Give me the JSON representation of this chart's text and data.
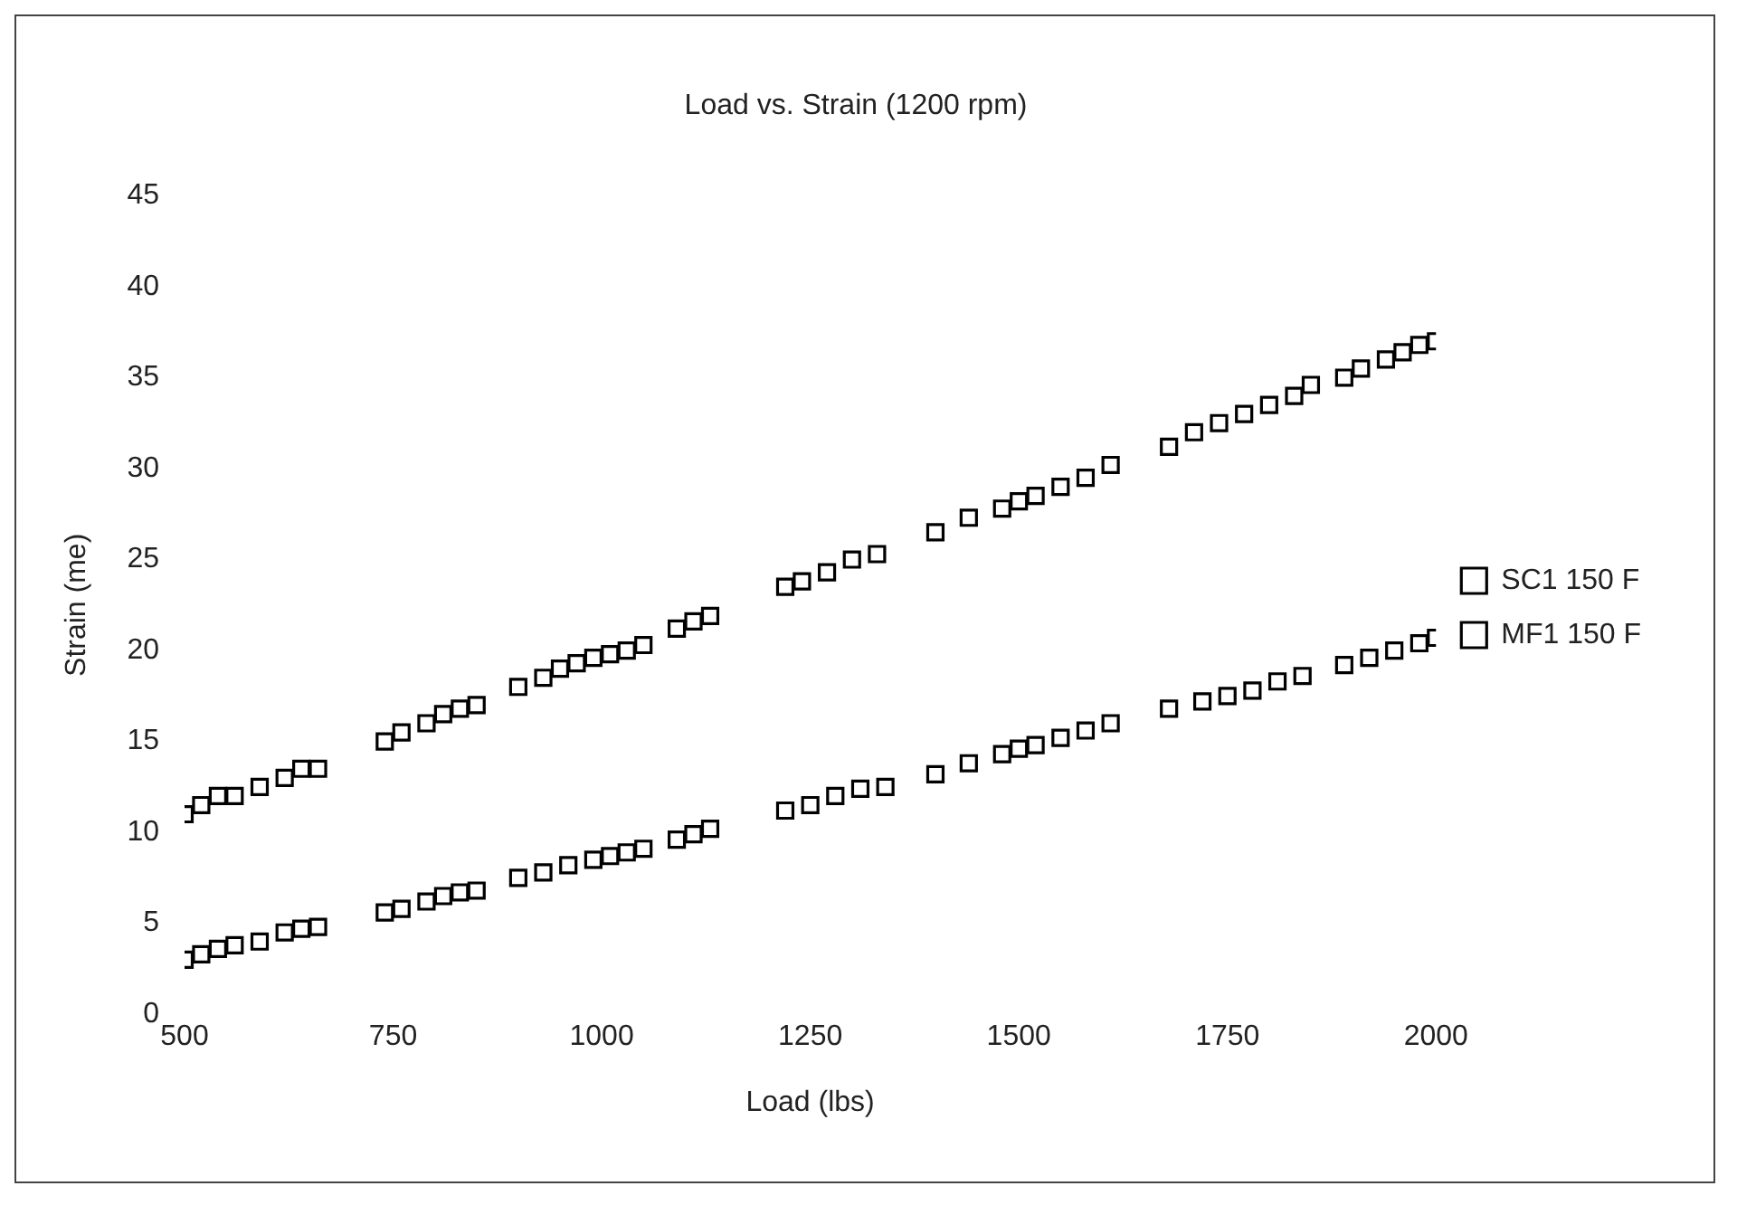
{
  "chart_data": {
    "type": "scatter",
    "title": "Load vs. Strain (1200 rpm)",
    "xlabel": "Load (lbs)",
    "ylabel": "Strain (me)",
    "xlim": [
      500,
      2000
    ],
    "xticks": [
      500,
      750,
      1000,
      1250,
      1500,
      1750,
      2000
    ],
    "ylim": [
      0,
      45
    ],
    "yticks": [
      0,
      5,
      10,
      15,
      20,
      25,
      30,
      35,
      40,
      45
    ],
    "grid": false,
    "legend": "right",
    "marker": "square",
    "series": [
      {
        "name": "SC1 150 F",
        "color": "#000000",
        "x": [
          500,
          520,
          540,
          560,
          590,
          620,
          640,
          660,
          740,
          760,
          790,
          810,
          830,
          850,
          900,
          930,
          950,
          970,
          990,
          1010,
          1030,
          1050,
          1090,
          1110,
          1130,
          1220,
          1240,
          1270,
          1300,
          1330,
          1400,
          1440,
          1480,
          1500,
          1520,
          1550,
          1580,
          1610,
          1680,
          1710,
          1740,
          1770,
          1800,
          1830,
          1850,
          1890,
          1910,
          1940,
          1960,
          1980,
          2000
        ],
        "values": [
          11,
          11.5,
          12,
          12,
          12.5,
          13,
          13.5,
          13.5,
          15,
          15.5,
          16,
          16.5,
          16.8,
          17,
          18,
          18.5,
          19,
          19.3,
          19.6,
          19.8,
          20,
          20.3,
          21.2,
          21.6,
          21.9,
          23.5,
          23.8,
          24.3,
          25,
          25.3,
          26.5,
          27.3,
          27.8,
          28.2,
          28.5,
          29,
          29.5,
          30.2,
          31.2,
          32,
          32.5,
          33,
          33.5,
          34,
          34.6,
          35,
          35.5,
          36,
          36.4,
          36.8,
          37
        ]
      },
      {
        "name": "MF1 150 F",
        "color": "#000000",
        "x": [
          500,
          520,
          540,
          560,
          590,
          620,
          640,
          660,
          740,
          760,
          790,
          810,
          830,
          850,
          900,
          930,
          960,
          990,
          1010,
          1030,
          1050,
          1090,
          1110,
          1130,
          1220,
          1250,
          1280,
          1310,
          1340,
          1400,
          1440,
          1480,
          1500,
          1520,
          1550,
          1580,
          1610,
          1680,
          1720,
          1750,
          1780,
          1810,
          1840,
          1890,
          1920,
          1950,
          1980,
          2000
        ],
        "values": [
          3,
          3.3,
          3.6,
          3.8,
          4,
          4.5,
          4.7,
          4.8,
          5.6,
          5.8,
          6.2,
          6.5,
          6.7,
          6.8,
          7.5,
          7.8,
          8.2,
          8.5,
          8.7,
          8.9,
          9.1,
          9.6,
          9.9,
          10.2,
          11.2,
          11.5,
          12,
          12.4,
          12.5,
          13.2,
          13.8,
          14.3,
          14.6,
          14.8,
          15.2,
          15.6,
          16,
          16.8,
          17.2,
          17.5,
          17.8,
          18.3,
          18.6,
          19.2,
          19.6,
          20,
          20.4,
          20.7
        ]
      }
    ]
  }
}
